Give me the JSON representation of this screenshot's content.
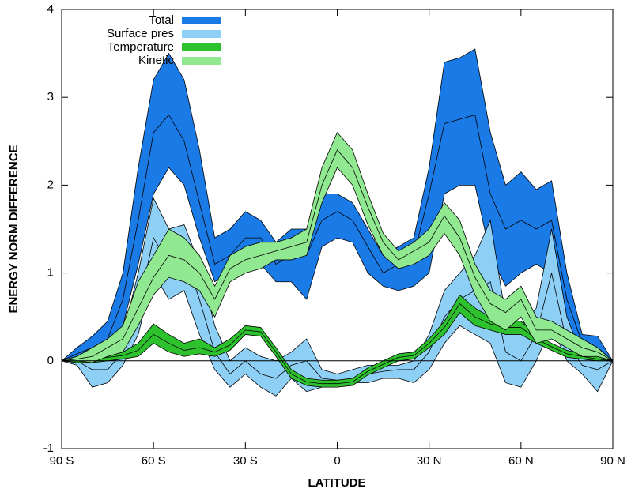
{
  "chart_data": {
    "type": "band-line",
    "x_label": "LATITUDE",
    "y_label": "ENERGY NORM DIFFERENCE",
    "x": [
      -90,
      -85,
      -80,
      -75,
      -70,
      -65,
      -60,
      -55,
      -50,
      -45,
      -40,
      -35,
      -30,
      -25,
      -20,
      -15,
      -10,
      -5,
      0,
      5,
      10,
      15,
      20,
      25,
      30,
      35,
      40,
      45,
      50,
      55,
      60,
      65,
      70,
      75,
      80,
      85,
      90
    ],
    "xlim": [
      -90,
      90
    ],
    "xticks": [
      {
        "value": -90,
        "label": "90 S"
      },
      {
        "value": -60,
        "label": "60 S"
      },
      {
        "value": -30,
        "label": "30 S"
      },
      0,
      {
        "value": 30,
        "label": "30 N"
      },
      {
        "value": 60,
        "label": "60 N"
      },
      {
        "value": 90,
        "label": "90 N"
      }
    ],
    "ylim": [
      -1,
      4
    ],
    "yticks": [
      -1,
      0,
      1,
      2,
      3,
      4
    ],
    "legend": "top-left",
    "series": [
      {
        "name": "Total",
        "color": "#1a7ae6",
        "values": [
          0,
          0.08,
          0.15,
          0.25,
          0.7,
          1.6,
          2.6,
          2.8,
          2.5,
          1.8,
          1.1,
          1.2,
          1.4,
          1.4,
          1.1,
          1.2,
          1.2,
          1.6,
          1.7,
          1.6,
          1.3,
          1.0,
          1.1,
          1.2,
          1.9,
          2.7,
          2.75,
          2.8,
          1.9,
          1.5,
          1.6,
          1.5,
          1.6,
          0.7,
          0.2,
          0.15,
          0
        ],
        "upper": [
          0,
          0.15,
          0.28,
          0.45,
          1.0,
          2.2,
          3.2,
          3.5,
          3.2,
          2.4,
          1.4,
          1.5,
          1.7,
          1.6,
          1.35,
          1.5,
          1.5,
          1.9,
          1.9,
          1.8,
          1.5,
          1.2,
          1.3,
          1.4,
          2.2,
          3.4,
          3.45,
          3.55,
          2.6,
          2.0,
          2.15,
          1.95,
          2.05,
          1.0,
          0.3,
          0.28,
          0
        ],
        "lower": [
          0,
          0.02,
          0.05,
          0.1,
          0.4,
          1.1,
          1.9,
          2.2,
          2.0,
          1.4,
          0.9,
          1.0,
          1.15,
          1.1,
          0.9,
          0.9,
          0.7,
          1.3,
          1.4,
          1.35,
          1.0,
          0.85,
          0.8,
          0.85,
          1.0,
          1.9,
          2.0,
          2.0,
          1.2,
          0.85,
          1.0,
          1.1,
          1.0,
          0.3,
          0.1,
          0.05,
          0
        ]
      },
      {
        "name": "Surface pres",
        "color": "#8ecff5",
        "values": [
          0,
          0,
          -0.1,
          -0.1,
          0.1,
          0.6,
          1.4,
          1.1,
          1.2,
          0.7,
          0.1,
          -0.15,
          0,
          -0.15,
          -0.2,
          -0.05,
          0,
          -0.2,
          -0.22,
          -0.2,
          -0.15,
          -0.12,
          -0.1,
          -0.1,
          0.1,
          0.5,
          0.7,
          0.8,
          0.9,
          0.1,
          0,
          0.3,
          1.0,
          0.2,
          -0.05,
          -0.1,
          0
        ],
        "upper": [
          0,
          0.05,
          0.1,
          0.1,
          0.3,
          1.0,
          1.85,
          1.5,
          1.55,
          1.1,
          0.4,
          0,
          0.15,
          0.05,
          0,
          0.1,
          0.25,
          -0.1,
          -0.15,
          -0.1,
          -0.05,
          -0.05,
          -0.05,
          0,
          0.3,
          0.8,
          1.0,
          1.2,
          1.6,
          0.5,
          0.4,
          0.6,
          1.5,
          0.5,
          0.05,
          0.1,
          0
        ],
        "lower": [
          0,
          -0.05,
          -0.3,
          -0.25,
          -0.05,
          0.3,
          1.0,
          0.7,
          0.8,
          0.3,
          -0.1,
          -0.3,
          -0.15,
          -0.3,
          -0.4,
          -0.2,
          -0.35,
          -0.3,
          -0.3,
          -0.25,
          -0.25,
          -0.2,
          -0.2,
          -0.25,
          -0.1,
          0.2,
          0.4,
          0.3,
          0.2,
          -0.25,
          -0.3,
          0,
          0.4,
          0,
          -0.15,
          -0.35,
          0
        ]
      },
      {
        "name": "Temperature",
        "color": "#2ec12e",
        "values": [
          0,
          0,
          0.02,
          0.04,
          0.06,
          0.12,
          0.3,
          0.2,
          0.12,
          0.15,
          0.1,
          0.18,
          0.35,
          0.33,
          0.1,
          -0.15,
          -0.24,
          -0.26,
          -0.26,
          -0.24,
          -0.12,
          -0.04,
          0.04,
          0.06,
          0.2,
          0.38,
          0.65,
          0.5,
          0.42,
          0.38,
          0.38,
          0.25,
          0.16,
          0.08,
          0.05,
          0.02,
          0
        ],
        "upper": [
          0,
          0.02,
          0.05,
          0.08,
          0.1,
          0.2,
          0.42,
          0.3,
          0.2,
          0.25,
          0.15,
          0.25,
          0.4,
          0.38,
          0.15,
          -0.1,
          -0.2,
          -0.22,
          -0.22,
          -0.2,
          -0.08,
          0,
          0.08,
          0.1,
          0.25,
          0.45,
          0.75,
          0.6,
          0.5,
          0.45,
          0.45,
          0.3,
          0.2,
          0.12,
          0.08,
          0.05,
          0
        ],
        "lower": [
          0,
          -0.02,
          -0.02,
          0,
          0.02,
          0.05,
          0.2,
          0.1,
          0.05,
          0.08,
          0.05,
          0.12,
          0.3,
          0.28,
          0.05,
          -0.2,
          -0.28,
          -0.3,
          -0.3,
          -0.28,
          -0.16,
          -0.08,
          0,
          0.02,
          0.15,
          0.3,
          0.55,
          0.4,
          0.35,
          0.3,
          0.3,
          0.2,
          0.12,
          0.04,
          0.02,
          0,
          0
        ]
      },
      {
        "name": "Kinetic",
        "color": "#90e890",
        "values": [
          0,
          0.02,
          0.05,
          0.15,
          0.25,
          0.6,
          0.95,
          1.2,
          1.15,
          1.0,
          0.7,
          1.05,
          1.15,
          1.2,
          1.25,
          1.3,
          1.35,
          2.0,
          2.4,
          2.2,
          1.75,
          1.35,
          1.15,
          1.25,
          1.35,
          1.65,
          1.4,
          0.95,
          0.65,
          0.55,
          0.7,
          0.35,
          0.35,
          0.25,
          0.15,
          0.1,
          0
        ],
        "upper": [
          0,
          0.05,
          0.15,
          0.25,
          0.4,
          0.9,
          1.2,
          1.5,
          1.4,
          1.2,
          0.85,
          1.2,
          1.3,
          1.35,
          1.35,
          1.4,
          1.5,
          2.2,
          2.6,
          2.4,
          1.9,
          1.45,
          1.25,
          1.35,
          1.5,
          1.8,
          1.6,
          1.1,
          0.8,
          0.7,
          0.85,
          0.5,
          0.45,
          0.35,
          0.25,
          0.15,
          0
        ],
        "lower": [
          0,
          0,
          -0.02,
          0.05,
          0.1,
          0.4,
          0.75,
          0.95,
          0.9,
          0.8,
          0.5,
          0.9,
          1.0,
          1.05,
          1.15,
          1.15,
          1.2,
          1.8,
          2.2,
          2.0,
          1.55,
          1.2,
          1.05,
          1.1,
          1.2,
          1.45,
          1.2,
          0.75,
          0.45,
          0.35,
          0.5,
          0.2,
          0.25,
          0.15,
          0.05,
          0.05,
          0
        ]
      }
    ]
  }
}
